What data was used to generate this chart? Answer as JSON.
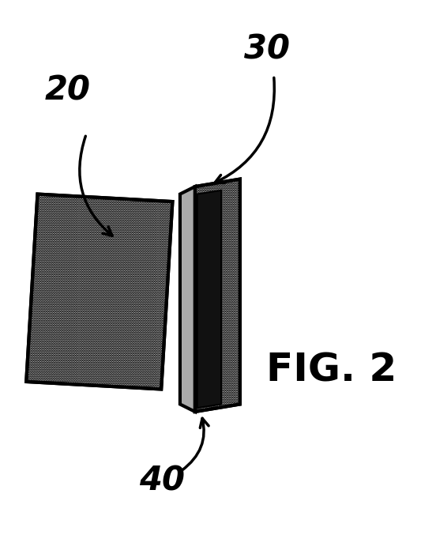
{
  "fig_label": "FIG. 2",
  "label_20": "20",
  "label_30": "30",
  "label_40": "40",
  "bg_color": "#ffffff",
  "stipple_color": "#d8d8d8",
  "dark_bar_color": "#111111",
  "outline_color": "#000000",
  "fontsize_labels": 30,
  "fontsize_fig": 36
}
